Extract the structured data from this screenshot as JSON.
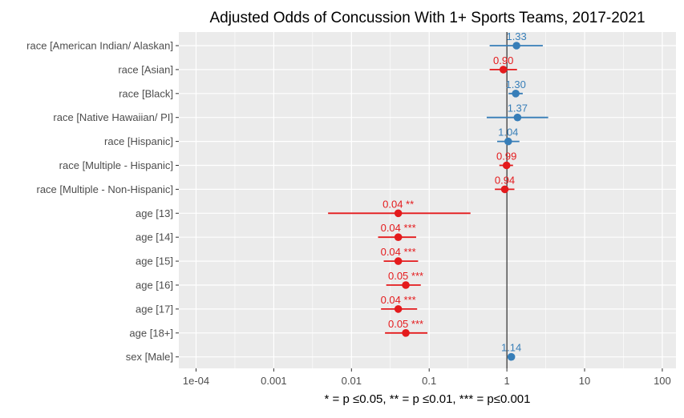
{
  "chart_data": {
    "type": "scatter",
    "title": "Adjusted Odds of Concussion With 1+ Sports Teams, 2017-2021",
    "xlabel": "* = p ≤0.05, ** = p ≤0.01, *** = p≤0.001",
    "ylabel": "",
    "x_scale": "log10",
    "xlim": [
      6e-05,
      150
    ],
    "x_ticks": [
      {
        "value": 0.0001,
        "label": "1e-04"
      },
      {
        "value": 0.001,
        "label": "0.001"
      },
      {
        "value": 0.01,
        "label": "0.01"
      },
      {
        "value": 0.1,
        "label": "0.1"
      },
      {
        "value": 1,
        "label": "1"
      },
      {
        "value": 10,
        "label": "10"
      },
      {
        "value": 100,
        "label": "100"
      }
    ],
    "reference_line": 1,
    "grid": true,
    "legend": "none",
    "colors": {
      "above_one": "#377EB8",
      "below_one": "#E41A1C",
      "panel": "#EBEBEB",
      "grid": "#FFFFFF",
      "tick_text": "#4D4D4D",
      "reference": "#000000"
    },
    "rows": [
      {
        "term": "race [American Indian/ Alaskan]",
        "estimate": 1.33,
        "ci_low": 0.6,
        "ci_high": 2.9,
        "label": "1.33",
        "group": "above_one"
      },
      {
        "term": "race [Asian]",
        "estimate": 0.9,
        "ci_low": 0.6,
        "ci_high": 1.35,
        "label": "0.90",
        "group": "below_one"
      },
      {
        "term": "race [Black]",
        "estimate": 1.3,
        "ci_low": 1.05,
        "ci_high": 1.6,
        "label": "1.30",
        "group": "above_one"
      },
      {
        "term": "race [Native Hawaiian/ PI]",
        "estimate": 1.37,
        "ci_low": 0.55,
        "ci_high": 3.4,
        "label": "1.37",
        "group": "above_one"
      },
      {
        "term": "race [Hispanic]",
        "estimate": 1.04,
        "ci_low": 0.75,
        "ci_high": 1.45,
        "label": "1.04",
        "group": "above_one"
      },
      {
        "term": "race [Multiple - Hispanic]",
        "estimate": 0.99,
        "ci_low": 0.8,
        "ci_high": 1.2,
        "label": "0.99",
        "group": "below_one"
      },
      {
        "term": "race [Multiple - Non-Hispanic]",
        "estimate": 0.94,
        "ci_low": 0.7,
        "ci_high": 1.25,
        "label": "0.94",
        "group": "below_one"
      },
      {
        "term": "age [13]",
        "estimate": 0.04,
        "ci_low": 0.005,
        "ci_high": 0.34,
        "label": "0.04 **",
        "group": "below_one"
      },
      {
        "term": "age [14]",
        "estimate": 0.04,
        "ci_low": 0.022,
        "ci_high": 0.068,
        "label": "0.04 ***",
        "group": "below_one"
      },
      {
        "term": "age [15]",
        "estimate": 0.04,
        "ci_low": 0.026,
        "ci_high": 0.072,
        "label": "0.04 ***",
        "group": "below_one"
      },
      {
        "term": "age [16]",
        "estimate": 0.05,
        "ci_low": 0.028,
        "ci_high": 0.078,
        "label": "0.05 ***",
        "group": "below_one"
      },
      {
        "term": "age [17]",
        "estimate": 0.04,
        "ci_low": 0.024,
        "ci_high": 0.07,
        "label": "0.04 ***",
        "group": "below_one"
      },
      {
        "term": "age [18+]",
        "estimate": 0.05,
        "ci_low": 0.027,
        "ci_high": 0.095,
        "label": "0.05 ***",
        "group": "below_one"
      },
      {
        "term": "sex [Male]",
        "estimate": 1.14,
        "ci_low": 1.05,
        "ci_high": 1.25,
        "label": "1.14",
        "group": "above_one"
      }
    ]
  }
}
